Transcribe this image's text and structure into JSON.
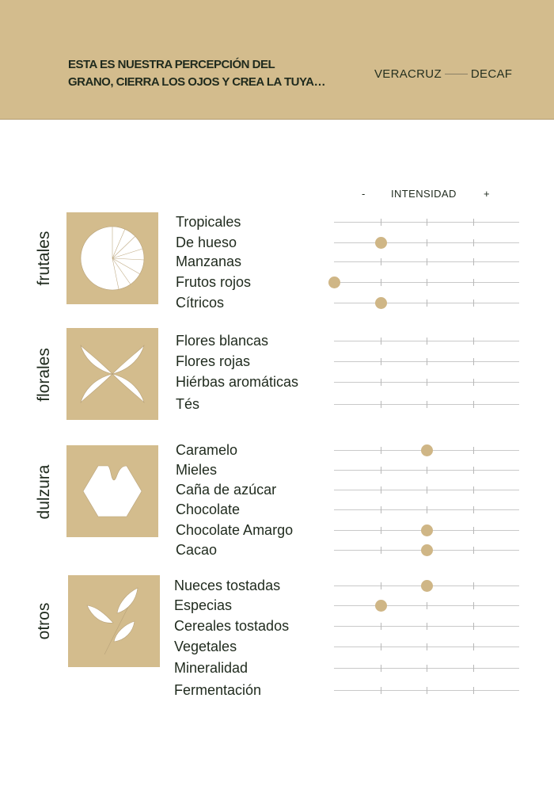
{
  "header": {
    "tagline_line1": "ESTA ES NUESTRA PERCEPCIÓN DEL",
    "tagline_line2": "GRANO, CIERRA LOS OJOS Y CREA LA TUYA…",
    "origin": "VERACRUZ",
    "process": "DECAF",
    "background_color": "#d3bc8d"
  },
  "scale": {
    "minus": "-",
    "label": "INTENSIDAD",
    "plus": "+",
    "steps": 4,
    "dot_color": "#cfb686"
  },
  "categories": [
    {
      "name": "frutales",
      "icon": "citrus-slice-icon",
      "attributes": [
        {
          "label": "Tropicales",
          "intensity": null
        },
        {
          "label": "De hueso",
          "intensity": 1
        },
        {
          "label": "Manzanas",
          "intensity": null
        },
        {
          "label": "Frutos rojos",
          "intensity": 0
        },
        {
          "label": "Cítricos",
          "intensity": 1
        }
      ]
    },
    {
      "name": "florales",
      "icon": "flower-petals-icon",
      "attributes": [
        {
          "label": "Flores blancas",
          "intensity": null
        },
        {
          "label": "Flores rojas",
          "intensity": null
        },
        {
          "label": "Hiérbas aromáticas",
          "intensity": null
        },
        {
          "label": "Tés",
          "intensity": null
        }
      ]
    },
    {
      "name": "dulzura",
      "icon": "sugar-cube-icon",
      "attributes": [
        {
          "label": "Caramelo",
          "intensity": 2
        },
        {
          "label": "Mieles",
          "intensity": null
        },
        {
          "label": "Caña de azúcar",
          "intensity": null
        },
        {
          "label": "Chocolate",
          "intensity": null
        },
        {
          "label": "Chocolate Amargo",
          "intensity": 2
        },
        {
          "label": "Cacao",
          "intensity": 2
        }
      ]
    },
    {
      "name": "otros",
      "icon": "leaves-icon",
      "attributes": [
        {
          "label": "Nueces tostadas",
          "intensity": 2
        },
        {
          "label": "Especias",
          "intensity": 1
        },
        {
          "label": "Cereales tostados",
          "intensity": null
        },
        {
          "label": "Vegetales",
          "intensity": null
        },
        {
          "label": "Mineralidad",
          "intensity": null
        },
        {
          "label": "Fermentación",
          "intensity": null
        }
      ]
    }
  ]
}
